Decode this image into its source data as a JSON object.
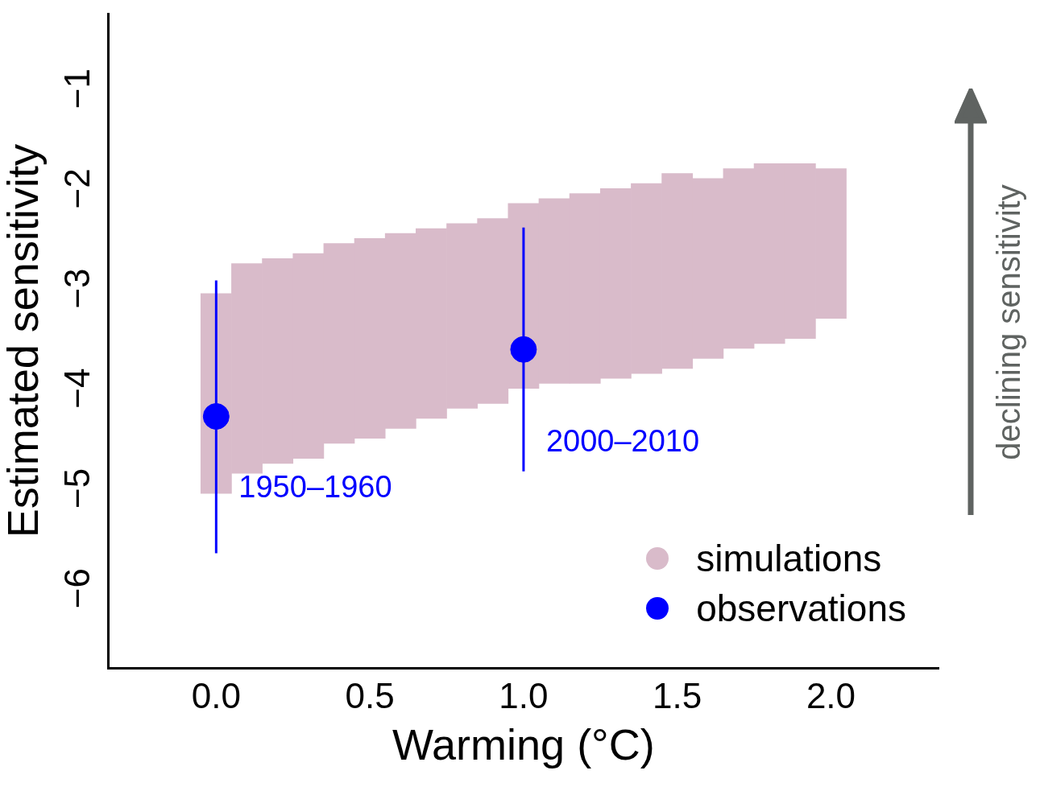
{
  "chart_data": {
    "type": "scatter",
    "xlabel": "Warming (°C)",
    "ylabel": "Estimated sensitivity",
    "xlim": [
      -0.35,
      2.35
    ],
    "ylim": [
      -6.8,
      -0.25
    ],
    "xticks": [
      {
        "value": 0,
        "label": "0.0"
      },
      {
        "value": 0.5,
        "label": "0.5"
      },
      {
        "value": 1,
        "label": "1.0"
      },
      {
        "value": 1.5,
        "label": "1.5"
      },
      {
        "value": 2,
        "label": "2.0"
      }
    ],
    "yticks": [
      {
        "value": -6,
        "label": "−6"
      },
      {
        "value": -5,
        "label": "−5"
      },
      {
        "value": -4,
        "label": "−4"
      },
      {
        "value": -3,
        "label": "−3"
      },
      {
        "value": -2,
        "label": "−2"
      },
      {
        "value": -1,
        "label": "−1"
      }
    ],
    "grid": false,
    "legend": "bottom right",
    "series": [
      {
        "name": "simulations",
        "type": "bar",
        "color": "#d9bbca",
        "x": [
          0,
          0.1,
          0.2,
          0.3,
          0.4,
          0.5,
          0.6,
          0.7,
          0.8,
          0.9,
          1.0,
          1.1,
          1.2,
          1.3,
          1.4,
          1.5,
          1.6,
          1.7,
          1.8,
          1.9,
          2.0
        ],
        "values": [
          2.0,
          2.1,
          2.05,
          2.05,
          2.0,
          2.0,
          1.95,
          1.9,
          1.85,
          1.85,
          1.85,
          1.85,
          1.9,
          1.9,
          1.9,
          1.95,
          1.8,
          1.8,
          1.8,
          1.75,
          1.5
        ],
        "base": [
          -5.05,
          -4.85,
          -4.75,
          -4.7,
          -4.55,
          -4.5,
          -4.4,
          -4.3,
          -4.2,
          -4.15,
          -4.0,
          -3.95,
          -3.95,
          -3.9,
          -3.85,
          -3.8,
          -3.7,
          -3.6,
          -3.55,
          -3.5,
          -3.3
        ]
      },
      {
        "name": "observations",
        "color": "#0000ff",
        "x": [
          0,
          1
        ],
        "values": [
          -4.28,
          -3.61
        ],
        "errors": [
          [
            -5.65,
            -2.92
          ],
          [
            -4.83,
            -2.39
          ]
        ],
        "marker": "circle"
      }
    ],
    "annotations": [
      "1950–1960",
      "2000–2010",
      "declining sensitivity"
    ]
  }
}
